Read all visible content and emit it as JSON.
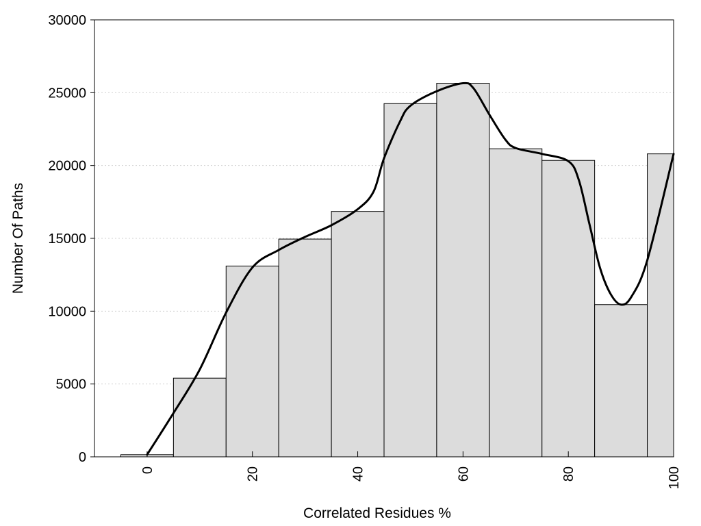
{
  "chart_data": {
    "type": "bar",
    "xlabel": "Correlated Residues %",
    "ylabel": "Number Of Paths",
    "x": [
      0,
      10,
      20,
      30,
      40,
      50,
      60,
      70,
      80,
      90,
      100
    ],
    "values": [
      150,
      5400,
      13100,
      14950,
      16850,
      24250,
      25650,
      21150,
      20350,
      10450,
      20800
    ],
    "bin_width": 10,
    "xlim": [
      -10,
      100
    ],
    "ylim": [
      0,
      30000
    ],
    "x_ticks": [
      0,
      20,
      40,
      60,
      80,
      100
    ],
    "y_ticks": [
      0,
      5000,
      10000,
      15000,
      20000,
      25000,
      30000
    ],
    "grid": "horizontal dotted",
    "smooth_curve": {
      "x": [
        0,
        5,
        10,
        15,
        20,
        25,
        30,
        35,
        40,
        43,
        45,
        48,
        50,
        55,
        60,
        62,
        65,
        68,
        70,
        75,
        80,
        82,
        84,
        86,
        88,
        90,
        92,
        95,
        100
      ],
      "y": [
        150,
        3000,
        6000,
        9900,
        13000,
        14200,
        15100,
        15900,
        17000,
        18200,
        20500,
        23000,
        24100,
        25100,
        25650,
        25300,
        23500,
        21800,
        21200,
        20800,
        20300,
        19000,
        16000,
        13000,
        11200,
        10450,
        11000,
        13500,
        20800
      ]
    }
  }
}
